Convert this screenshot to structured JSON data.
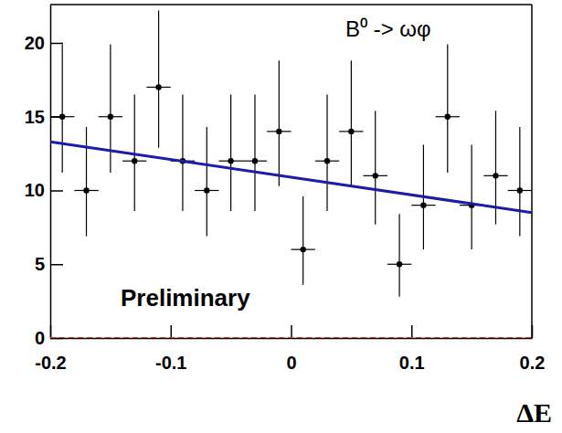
{
  "chart_data": {
    "type": "scatter",
    "x_label": "ΔE",
    "annotations": [
      {
        "text": "B⁰ -> ωφ"
      },
      {
        "text": "Preliminary"
      }
    ],
    "xlim": [
      -0.2,
      0.2
    ],
    "xticks": [
      -0.2,
      -0.1,
      0,
      0.1,
      0.2
    ],
    "ylim": [
      0,
      22.6
    ],
    "yticks": [
      0,
      5,
      10,
      15,
      20
    ],
    "grid": false,
    "series": [
      {
        "type": "scatter",
        "color": "#000000",
        "marker": "circle",
        "x": [
          -0.19,
          -0.17,
          -0.15,
          -0.13,
          -0.11,
          -0.09,
          -0.07,
          -0.05,
          -0.03,
          -0.01,
          0.01,
          0.03,
          0.05,
          0.07,
          0.09,
          0.11,
          0.13,
          0.15,
          0.17,
          0.19
        ],
        "x_errors": [
          0.01,
          0.01,
          0.01,
          0.01,
          0.01,
          0.01,
          0.01,
          0.01,
          0.01,
          0.01,
          0.01,
          0.01,
          0.01,
          0.01,
          0.01,
          0.01,
          0.01,
          0.01,
          0.01,
          0.01
        ],
        "values": [
          15,
          10,
          15,
          12,
          17,
          12,
          10,
          12,
          12,
          14,
          6,
          12,
          14,
          11,
          5,
          9,
          15,
          9,
          11,
          10
        ],
        "errors_low": [
          3.8,
          3.1,
          3.8,
          3.4,
          4.1,
          3.4,
          3.1,
          3.4,
          3.4,
          3.7,
          2.4,
          3.4,
          3.7,
          3.3,
          2.2,
          3.0,
          3.8,
          3.0,
          3.3,
          3.1
        ],
        "errors_high": [
          4.9,
          4.3,
          4.9,
          4.5,
          5.2,
          4.5,
          4.3,
          4.5,
          4.5,
          4.8,
          3.6,
          4.5,
          4.8,
          4.4,
          3.4,
          4.1,
          4.9,
          4.1,
          4.4,
          4.3
        ]
      },
      {
        "type": "line",
        "color": "#1c1ca8",
        "line_style": "solid",
        "x": [
          -0.2,
          0.2
        ],
        "values": [
          13.3,
          8.5
        ]
      },
      {
        "type": "line",
        "color": "#e03030",
        "line_style": "dashed",
        "x": [
          -0.2,
          0.2
        ],
        "values": [
          0,
          0
        ]
      }
    ]
  }
}
